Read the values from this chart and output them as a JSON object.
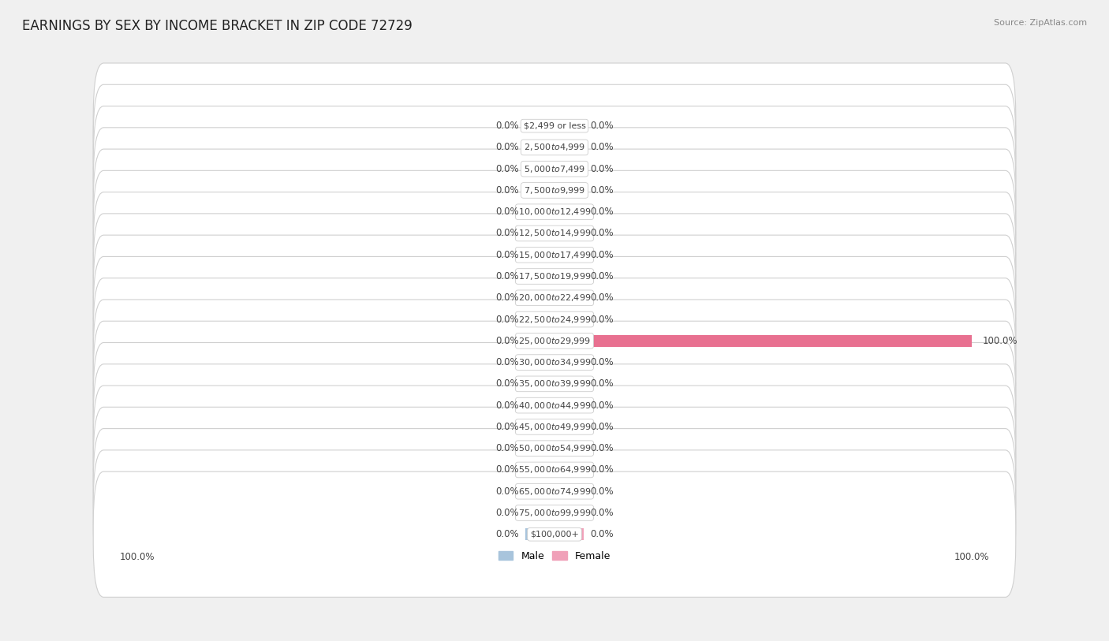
{
  "title": "EARNINGS BY SEX BY INCOME BRACKET IN ZIP CODE 72729",
  "source": "Source: ZipAtlas.com",
  "categories": [
    "$2,499 or less",
    "$2,500 to $4,999",
    "$5,000 to $7,499",
    "$7,500 to $9,999",
    "$10,000 to $12,499",
    "$12,500 to $14,999",
    "$15,000 to $17,499",
    "$17,500 to $19,999",
    "$20,000 to $22,499",
    "$22,500 to $24,999",
    "$25,000 to $29,999",
    "$30,000 to $34,999",
    "$35,000 to $39,999",
    "$40,000 to $44,999",
    "$45,000 to $49,999",
    "$50,000 to $54,999",
    "$55,000 to $64,999",
    "$65,000 to $74,999",
    "$75,000 to $99,999",
    "$100,000+"
  ],
  "male_values": [
    0.0,
    0.0,
    0.0,
    0.0,
    0.0,
    0.0,
    0.0,
    0.0,
    0.0,
    0.0,
    0.0,
    0.0,
    0.0,
    0.0,
    0.0,
    0.0,
    0.0,
    0.0,
    0.0,
    0.0
  ],
  "female_values": [
    0.0,
    0.0,
    0.0,
    0.0,
    0.0,
    0.0,
    0.0,
    0.0,
    0.0,
    0.0,
    100.0,
    0.0,
    0.0,
    0.0,
    0.0,
    0.0,
    0.0,
    0.0,
    0.0,
    0.0
  ],
  "male_color": "#a8c4dc",
  "female_color": "#f0a0b8",
  "female_bar_color": "#e87090",
  "label_color": "#444444",
  "background_color": "#f0f0f0",
  "row_bg_color": "#e8e8e8",
  "row_border_color": "#d0d0d0",
  "title_color": "#222222",
  "source_color": "#888888",
  "axis_label_color": "#444444",
  "max_val": 100.0,
  "bar_height": 0.55,
  "label_box_color": "#ffffff",
  "label_box_border": "#cccccc",
  "value_label_fontsize": 8.5,
  "cat_label_fontsize": 8.0,
  "title_fontsize": 12,
  "source_fontsize": 8,
  "legend_fontsize": 9
}
